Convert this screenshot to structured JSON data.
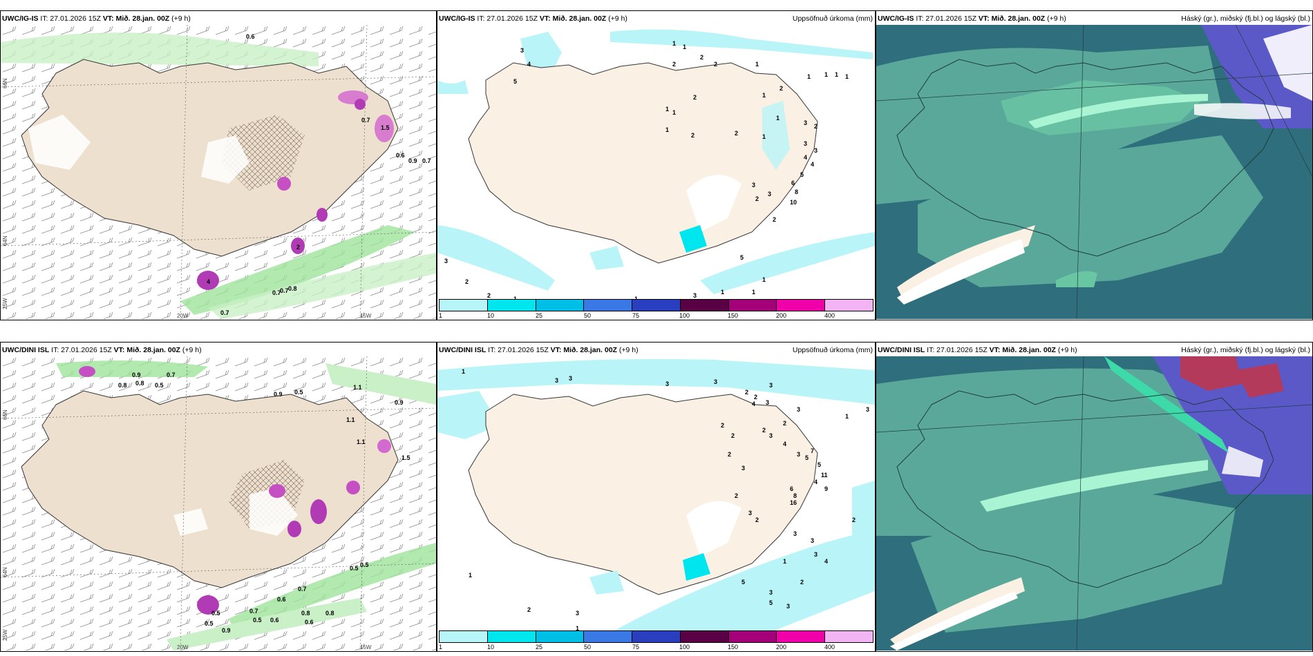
{
  "rows": [
    {
      "model": "UWC/IG-IS",
      "it_label": "IT: 27.01.2026 15Z",
      "vt_label": "VT: Mið. 28.jan. 00Z",
      "lead": "(+9 h)"
    },
    {
      "model": "UWC/DINI ISL",
      "it_label": "IT: 27.01.2026 15Z",
      "vt_label": "VT: Mið. 28.jan. 00Z",
      "lead": "(+9 h)"
    }
  ],
  "precip_title": "Uppsöfnuð úrkoma (mm)",
  "cloud_title": "Háský (gr.), miðský (fj.bl.) og lágský (bl.)",
  "colorbar": {
    "ticks": [
      "1",
      "10",
      "25",
      "50",
      "75",
      "100",
      "150",
      "200",
      "400"
    ],
    "colors": [
      "#b7f6f8",
      "#00e6ef",
      "#00bfe6",
      "#3a78e6",
      "#2a3fc0",
      "#5a0045",
      "#a3007a",
      "#f000a8",
      "#f3b4f3"
    ]
  },
  "lat_labels": [
    "66N",
    "64N",
    "25W"
  ],
  "lon_labels": [
    "20W",
    "15W"
  ],
  "left_labels_top": [
    "0.6",
    "0.7",
    "0.6",
    "0.9",
    "0.7",
    "0.7",
    "0.7",
    "0.8",
    "0.7",
    "1.5",
    "2",
    "4"
  ],
  "left_labels_bottom": [
    "0.8",
    "0.9",
    "0.8",
    "0.7",
    "0.5",
    "0.9",
    "0.5",
    "1.1",
    "0.9",
    "1.1",
    "1.1",
    "1.5",
    "0.6",
    "0.5",
    "0.5",
    "0.7",
    "0.6",
    "0.5",
    "0.5",
    "0.5",
    "0.8",
    "0.8",
    "0.9",
    "0.6",
    "0.7"
  ],
  "mid_labels_top": [
    "1",
    "1",
    "2",
    "2",
    "2",
    "1",
    "1",
    "1",
    "1",
    "1",
    "2",
    "1",
    "1",
    "2",
    "1",
    "2",
    "1",
    "2",
    "1",
    "1",
    "3",
    "2",
    "3",
    "3",
    "4",
    "4",
    "5",
    "6",
    "8",
    "10",
    "3",
    "2",
    "3",
    "2",
    "5",
    "1",
    "1",
    "1",
    "3",
    "2",
    "2",
    "3",
    "1",
    "1",
    "5",
    "4",
    "3"
  ],
  "mid_labels_bottom": [
    "1",
    "3",
    "3",
    "3",
    "3",
    "3",
    "2",
    "2",
    "3",
    "4",
    "2",
    "3",
    "1",
    "3",
    "2",
    "2",
    "3",
    "2",
    "2",
    "3",
    "4",
    "3",
    "5",
    "6",
    "8",
    "16",
    "7",
    "5",
    "4",
    "11",
    "9",
    "3",
    "2",
    "2",
    "3",
    "3",
    "2",
    "3",
    "4",
    "5",
    "3",
    "2",
    "1",
    "2",
    "3",
    "3",
    "5",
    "1",
    "1"
  ]
}
